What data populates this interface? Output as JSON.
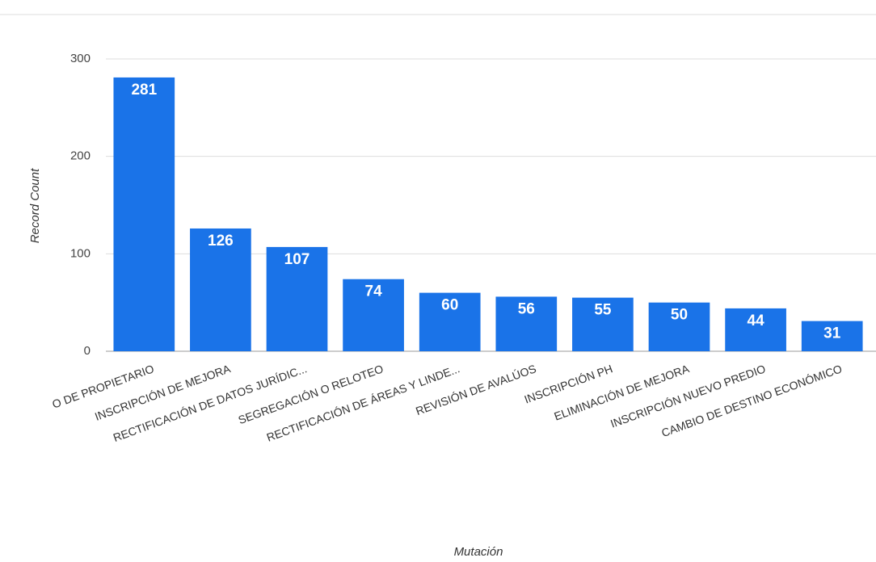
{
  "chart_data": {
    "type": "bar",
    "x_label": "Mutación",
    "y_label": "Record Count",
    "categories": [
      "O DE PROPIETARIO",
      "INSCRIPCIÓN DE MEJORA",
      "RECTIFICACIÓN DE DATOS JURÍDIC...",
      "SEGREGACIÓN O RELOTEO",
      "RECTIFICACIÓN DE ÁREAS Y LINDE...",
      "REVISIÓN DE AVALÚOS",
      "INSCRIPCIÓN PH",
      "ELIMINACIÓN DE MEJORA",
      "INSCRIPCIÓN NUEVO PREDIO",
      "CAMBIO DE DESTINO ECONÓMICO"
    ],
    "values": [
      281,
      126,
      107,
      74,
      60,
      56,
      55,
      50,
      44,
      31
    ],
    "color": "#1a73e8",
    "ylim": [
      0,
      300
    ],
    "yticks": [
      0,
      100,
      200,
      300
    ],
    "grid": true
  }
}
